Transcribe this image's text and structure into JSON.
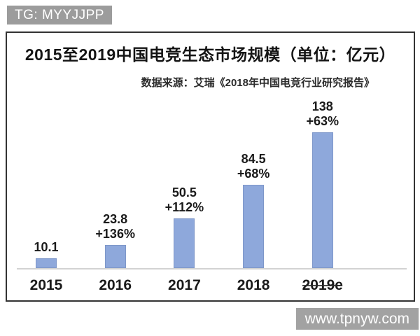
{
  "watermarks": {
    "top": "TG: MYYJJPP",
    "bottom": "www.tpnyw.com"
  },
  "chart_data": {
    "type": "bar",
    "title": "2015至2019中国电竞生态市场规模（单位：亿元）",
    "source": "数据来源：艾瑞《2018年中国电竞行业研究报告》",
    "unit": "亿元",
    "categories": [
      "2015",
      "2016",
      "2017",
      "2018",
      "2019e"
    ],
    "values": [
      10.1,
      23.8,
      50.5,
      84.5,
      138
    ],
    "value_labels": [
      "10.1",
      "23.8",
      "50.5",
      "84.5",
      "138"
    ],
    "growth_labels": [
      "",
      "+136%",
      "+112%",
      "+68%",
      "+63%"
    ],
    "bar_color": "#8ea8db",
    "axis_color": "#d2d2d2",
    "ylim": [
      0,
      150
    ],
    "grid": false,
    "legend": false,
    "x_tick_struck": [
      false,
      false,
      false,
      false,
      true
    ]
  }
}
